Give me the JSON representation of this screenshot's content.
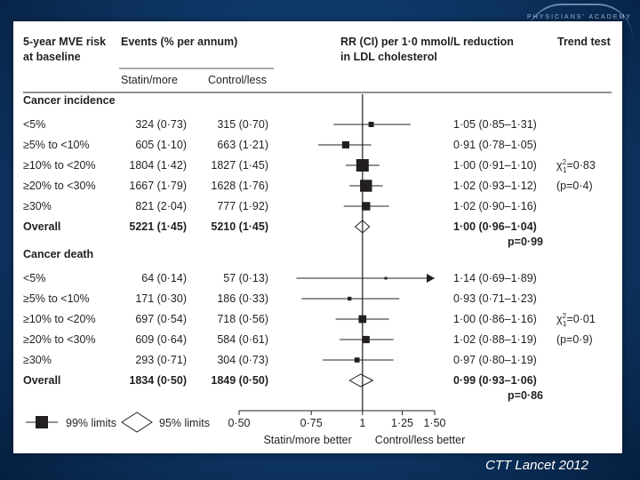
{
  "header": {
    "col_risk_line1": "5-year MVE risk",
    "col_risk_line2": "at baseline",
    "col_events": "Events (% per annum)",
    "col_statin": "Statin/more",
    "col_control": "Control/less",
    "col_rr_line1": "RR (CI) per 1·0 mmol/L reduction",
    "col_rr_line2": "in LDL cholesterol",
    "col_trend": "Trend test"
  },
  "logo_text": "PHYSICIANS' ACADEMY",
  "credit": "CTT Lancet 2012",
  "chart_data": {
    "type": "forest",
    "x_axis": {
      "scale": "log",
      "range": [
        0.5,
        1.5
      ],
      "ticks": [
        0.5,
        0.75,
        1,
        1.25,
        1.5
      ],
      "tick_labels": [
        "0·50",
        "0·75",
        "1",
        "1·25",
        "1·50"
      ],
      "label_left": "Statin/more better",
      "label_right": "Control/less better"
    },
    "legend": {
      "limits99": "99% limits",
      "limits95": "95% limits"
    },
    "sections": [
      {
        "title": "Cancer incidence",
        "rows": [
          {
            "label": "<5%",
            "statin": "324 (0·73)",
            "control": "315 (0·70)",
            "rr": 1.05,
            "lo": 0.85,
            "hi": 1.31,
            "rr_text": "1·05 (0·85–1·31)",
            "weight": 324
          },
          {
            "label": "≥5% to <10%",
            "statin": "605 (1·10)",
            "control": "663 (1·21)",
            "rr": 0.91,
            "lo": 0.78,
            "hi": 1.05,
            "rr_text": "0·91 (0·78–1·05)",
            "weight": 605
          },
          {
            "label": "≥10% to <20%",
            "statin": "1804 (1·42)",
            "control": "1827 (1·45)",
            "rr": 1.0,
            "lo": 0.91,
            "hi": 1.1,
            "rr_text": "1·00 (0·91–1·10)",
            "weight": 1804
          },
          {
            "label": "≥20% to <30%",
            "statin": "1667 (1·79)",
            "control": "1628 (1·76)",
            "rr": 1.02,
            "lo": 0.93,
            "hi": 1.12,
            "rr_text": "1·02 (0·93–1·12)",
            "weight": 1667
          },
          {
            "label": "≥30%",
            "statin": "821 (2·04)",
            "control": "777 (1·92)",
            "rr": 1.02,
            "lo": 0.9,
            "hi": 1.16,
            "rr_text": "1·02 (0·90–1·16)",
            "weight": 821
          }
        ],
        "overall": {
          "label": "Overall",
          "statin": "5221 (1·45)",
          "control": "5210 (1·45)",
          "rr": 1.0,
          "lo": 0.96,
          "hi": 1.04,
          "rr_text": "1·00 (0·96–1·04)",
          "p": "p=0·99"
        },
        "trend_chi": "=0·83",
        "trend_p": "(p=0·4)"
      },
      {
        "title": "Cancer death",
        "rows": [
          {
            "label": "<5%",
            "statin": "64 (0·14)",
            "control": "57 (0·13)",
            "rr": 1.14,
            "lo": 0.69,
            "hi": 1.89,
            "rr_text": "1·14 (0·69–1·89)",
            "weight": 64
          },
          {
            "label": "≥5% to <10%",
            "statin": "171 (0·30)",
            "control": "186 (0·33)",
            "rr": 0.93,
            "lo": 0.71,
            "hi": 1.23,
            "rr_text": "0·93 (0·71–1·23)",
            "weight": 171
          },
          {
            "label": "≥10% to <20%",
            "statin": "697 (0·54)",
            "control": "718 (0·56)",
            "rr": 1.0,
            "lo": 0.86,
            "hi": 1.16,
            "rr_text": "1·00 (0·86–1·16)",
            "weight": 697
          },
          {
            "label": "≥20% to <30%",
            "statin": "609 (0·64)",
            "control": "584 (0·61)",
            "rr": 1.02,
            "lo": 0.88,
            "hi": 1.19,
            "rr_text": "1·02 (0·88–1·19)",
            "weight": 609
          },
          {
            "label": "≥30%",
            "statin": "293 (0·71)",
            "control": "304 (0·73)",
            "rr": 0.97,
            "lo": 0.8,
            "hi": 1.19,
            "rr_text": "0·97 (0·80–1·19)",
            "weight": 293
          }
        ],
        "overall": {
          "label": "Overall",
          "statin": "1834 (0·50)",
          "control": "1849 (0·50)",
          "rr": 0.99,
          "lo": 0.93,
          "hi": 1.06,
          "rr_text": "0·99 (0·93–1·06)",
          "p": "p=0·86"
        },
        "trend_chi": "=0·01",
        "trend_p": "(p=0·9)"
      }
    ]
  }
}
